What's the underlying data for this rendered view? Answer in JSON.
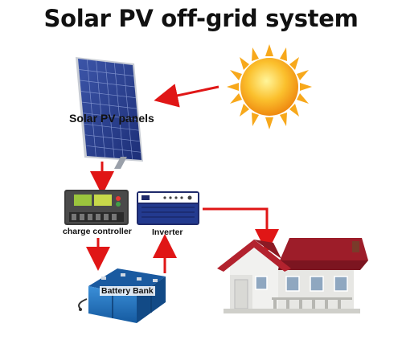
{
  "title": "Solar PV off-grid system",
  "labels": {
    "panels": "Solar PV panels",
    "controller": "charge controller",
    "inverter": "Inverter",
    "battery": "Battery Bank"
  },
  "icons": [
    "sun-icon",
    "solar-panel-icon",
    "charge-controller-icon",
    "inverter-icon",
    "battery-bank-icon",
    "house-icon"
  ],
  "colors": {
    "arrow": "#e01616",
    "panel_cell": "#2a3f8f",
    "sun": "#f7a81b",
    "roof": "#b3222e",
    "battery": "#1e6db8"
  }
}
